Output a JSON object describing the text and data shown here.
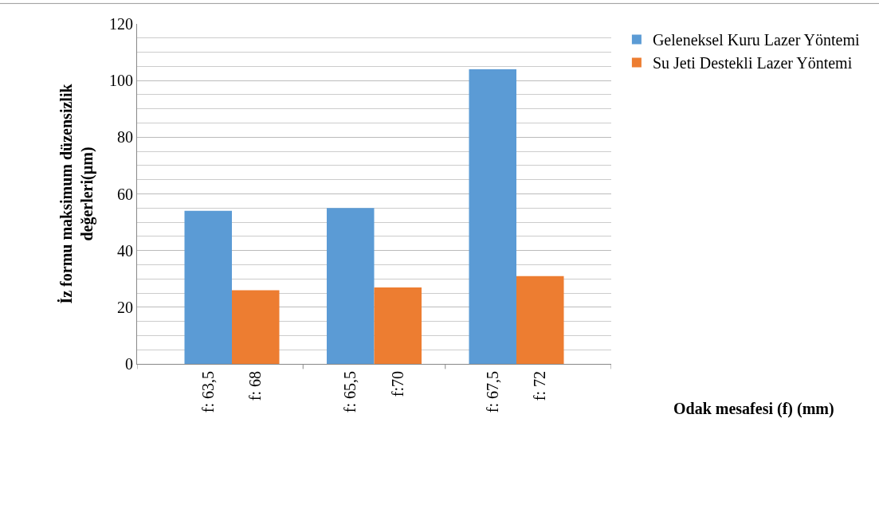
{
  "chart_data": {
    "type": "bar",
    "xlabel": "Odak mesafesi (f) (mm)",
    "ylabel": "İz formu maksimum düzensizlik\ndeğerleri(µm)",
    "categories": [
      "f: 63,5",
      "f: 68",
      "f: 65,5",
      "f:70",
      "f: 67,5",
      "f: 72"
    ],
    "series": [
      {
        "name": "Geleneksel Kuru Lazer Yöntemi",
        "color": "#5b9bd5",
        "values": [
          54,
          null,
          55,
          null,
          104,
          null
        ]
      },
      {
        "name": "Su Jeti Destekli Lazer Yöntemi",
        "color": "#ed7d31",
        "values": [
          null,
          26,
          null,
          27,
          null,
          31
        ]
      }
    ],
    "ylim": [
      0,
      120
    ],
    "yticks": [
      0,
      20,
      40,
      60,
      80,
      100,
      120
    ],
    "grid": "y",
    "legend": "top right"
  }
}
